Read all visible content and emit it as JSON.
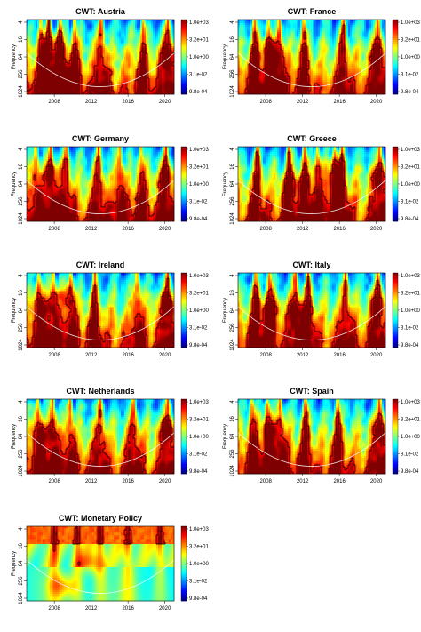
{
  "chart_data": {
    "type": "heatmap",
    "xlabel": "",
    "ylabel": "Frequency",
    "x_ticks": [
      "2008",
      "2012",
      "2016",
      "2020"
    ],
    "x_range": [
      2005,
      2021
    ],
    "y_ticks": [
      "4",
      "16",
      "64",
      "256",
      "1024"
    ],
    "y_scale": "log2",
    "y_inverted": true,
    "colorbar_ticks": [
      "1.0e+03",
      "3.2e+01",
      "1.0e+00",
      "3.1e-02",
      "9.8e-04"
    ],
    "colorbar_range": [
      0.00098,
      1000
    ],
    "colormap": [
      "#00007f",
      "#0000ff",
      "#007fff",
      "#00ffff",
      "#7fff7f",
      "#ffff00",
      "#ff7f00",
      "#ff0000",
      "#7f0000"
    ],
    "panels": [
      {
        "title": "CWT: Austria",
        "type": "heatmap",
        "spikes": [
          2006.5,
          2007.4,
          2008.6,
          2010.2,
          2013.1,
          2017.6,
          2020.3
        ],
        "hot_islands": [
          [
            2008.2,
            0.38,
            0.55
          ],
          [
            2009.1,
            0.7,
            0.15
          ],
          [
            2020.3,
            0.45,
            0.6
          ]
        ]
      },
      {
        "title": "CWT: France",
        "type": "heatmap",
        "spikes": [
          2006.8,
          2008.3,
          2009.5,
          2012.1,
          2016.4,
          2020.2
        ],
        "hot_islands": [
          [
            2008.6,
            0.45,
            0.5
          ],
          [
            2020.2,
            0.45,
            0.55
          ]
        ]
      },
      {
        "title": "CWT: Germany",
        "type": "heatmap",
        "spikes": [
          2006.0,
          2007.6,
          2009.3,
          2012.8,
          2015.1,
          2017.4,
          2020.1
        ],
        "hot_islands": [
          [
            2007.8,
            0.35,
            0.55
          ],
          [
            2020.1,
            0.4,
            0.6
          ]
        ]
      },
      {
        "title": "CWT: Greece",
        "type": "heatmap",
        "spikes": [
          2007.1,
          2010.5,
          2012.2,
          2013.6,
          2015.5,
          2016.3,
          2020.4
        ],
        "hot_islands": [
          [
            2015.2,
            0.35,
            0.7
          ],
          [
            2011.3,
            0.5,
            0.4
          ],
          [
            2020.4,
            0.4,
            0.6
          ]
        ]
      },
      {
        "title": "CWT: Ireland",
        "type": "heatmap",
        "spikes": [
          2006.3,
          2007.9,
          2009.8,
          2012.4,
          2017.0,
          2020.3
        ],
        "hot_islands": [
          [
            2006.9,
            0.45,
            0.6
          ],
          [
            2009.2,
            0.3,
            0.4
          ],
          [
            2020.3,
            0.4,
            0.6
          ]
        ]
      },
      {
        "title": "CWT: Italy",
        "type": "heatmap",
        "spikes": [
          2006.9,
          2008.4,
          2011.2,
          2012.6,
          2016.7,
          2020.2
        ],
        "hot_islands": [
          [
            2008.5,
            0.5,
            0.45
          ],
          [
            2011.5,
            0.5,
            0.4
          ],
          [
            2020.2,
            0.4,
            0.6
          ]
        ]
      },
      {
        "title": "CWT: Netherlands",
        "type": "heatmap",
        "spikes": [
          2006.2,
          2007.8,
          2009.7,
          2013.0,
          2016.6,
          2020.3
        ],
        "hot_islands": [
          [
            2007.0,
            0.45,
            0.55
          ],
          [
            2020.3,
            0.4,
            0.6
          ]
        ]
      },
      {
        "title": "CWT: Spain",
        "type": "heatmap",
        "spikes": [
          2006.5,
          2008.2,
          2009.6,
          2012.3,
          2015.8,
          2020.4
        ],
        "hot_islands": [
          [
            2008.4,
            0.4,
            0.55
          ],
          [
            2020.4,
            0.4,
            0.6
          ]
        ]
      },
      {
        "title": "CWT: Monetary Policy",
        "type": "heatmap",
        "spikes": [
          2008.0,
          2010.5,
          2013.0,
          2016.0,
          2019.5
        ],
        "hot_islands": [
          [
            2009.0,
            0.8,
            0.3
          ],
          [
            2012.0,
            0.5,
            0.3
          ]
        ],
        "variant": "monetary"
      }
    ]
  }
}
